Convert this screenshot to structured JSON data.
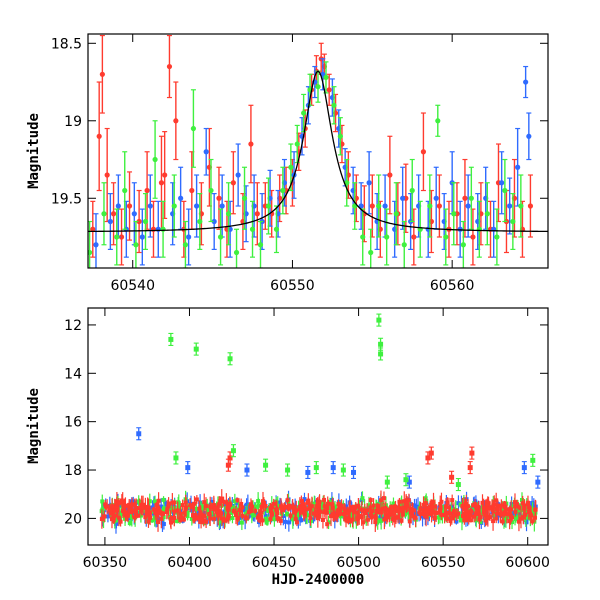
{
  "chart_data": [
    {
      "type": "scatter",
      "title": "",
      "xlabel": "",
      "ylabel": "Magnitude",
      "xlim": [
        60537.2,
        60566.0
      ],
      "ylim": [
        19.95,
        18.44
      ],
      "y_inverted": true,
      "x_ticks": [
        60540,
        60550,
        60560
      ],
      "y_ticks": [
        18.5,
        19,
        19.5
      ],
      "series": [
        {
          "color": "#ff3b2f",
          "points": [
            [
              60537.5,
              19.7,
              0.18
            ],
            [
              60537.9,
              19.1,
              0.35
            ],
            [
              60538.1,
              18.7,
              0.25
            ],
            [
              60538.4,
              19.35,
              0.3
            ],
            [
              60538.8,
              19.6,
              0.2
            ],
            [
              60539.3,
              19.75,
              0.18
            ],
            [
              60539.8,
              19.55,
              0.22
            ],
            [
              60540.4,
              19.65,
              0.2
            ],
            [
              60540.9,
              19.45,
              0.25
            ],
            [
              60541.3,
              19.7,
              0.18
            ],
            [
              60541.8,
              19.4,
              0.3
            ],
            [
              60542.0,
              19.35,
              0.28
            ],
            [
              60542.3,
              18.65,
              0.2
            ],
            [
              60542.7,
              19.0,
              0.25
            ],
            [
              60543.2,
              19.7,
              0.18
            ],
            [
              60543.7,
              19.45,
              0.25
            ],
            [
              60544.3,
              19.6,
              0.2
            ],
            [
              60544.8,
              19.3,
              0.25
            ],
            [
              60545.4,
              19.5,
              0.2
            ],
            [
              60545.9,
              19.7,
              0.18
            ],
            [
              60546.3,
              19.4,
              0.2
            ],
            [
              60546.9,
              19.65,
              0.18
            ],
            [
              60547.4,
              19.15,
              0.25
            ],
            [
              60547.8,
              19.6,
              0.2
            ],
            [
              60548.3,
              19.55,
              0.15
            ],
            [
              60548.7,
              19.6,
              0.15
            ],
            [
              60549.2,
              19.5,
              0.15
            ],
            [
              60549.6,
              19.45,
              0.15
            ],
            [
              60550.0,
              19.4,
              0.15
            ],
            [
              60550.4,
              19.2,
              0.12
            ],
            [
              60550.8,
              19.05,
              0.12
            ],
            [
              60551.2,
              18.8,
              0.1
            ],
            [
              60551.5,
              18.68,
              0.1
            ],
            [
              60551.8,
              18.6,
              0.1
            ],
            [
              60552.0,
              18.65,
              0.08
            ],
            [
              60552.3,
              18.8,
              0.1
            ],
            [
              60552.7,
              18.95,
              0.12
            ],
            [
              60553.1,
              19.15,
              0.12
            ],
            [
              60553.5,
              19.35,
              0.15
            ],
            [
              60554.0,
              19.5,
              0.15
            ],
            [
              60554.5,
              19.6,
              0.18
            ],
            [
              60555.0,
              19.55,
              0.2
            ],
            [
              60555.5,
              19.7,
              0.18
            ],
            [
              60556.1,
              19.35,
              0.25
            ],
            [
              60556.6,
              19.6,
              0.2
            ],
            [
              60557.1,
              19.5,
              0.22
            ],
            [
              60557.6,
              19.75,
              0.18
            ],
            [
              60558.2,
              19.2,
              0.25
            ],
            [
              60558.7,
              19.65,
              0.2
            ],
            [
              60559.2,
              19.55,
              0.2
            ],
            [
              60559.8,
              19.7,
              0.18
            ],
            [
              60560.3,
              19.6,
              0.2
            ],
            [
              60560.8,
              19.5,
              0.25
            ],
            [
              60561.3,
              19.75,
              0.18
            ],
            [
              60561.8,
              19.6,
              0.2
            ],
            [
              60562.4,
              19.7,
              0.18
            ],
            [
              60562.9,
              19.4,
              0.25
            ],
            [
              60563.4,
              19.65,
              0.2
            ],
            [
              60563.9,
              19.5,
              0.25
            ],
            [
              60564.4,
              19.7,
              0.18
            ],
            [
              60564.9,
              19.55,
              0.2
            ]
          ]
        },
        {
          "color": "#2f6bff",
          "points": [
            [
              60537.7,
              19.8,
              0.2
            ],
            [
              60538.6,
              19.65,
              0.18
            ],
            [
              60539.1,
              19.55,
              0.2
            ],
            [
              60539.6,
              19.7,
              0.18
            ],
            [
              60540.1,
              19.6,
              0.2
            ],
            [
              60540.6,
              19.75,
              0.18
            ],
            [
              60541.1,
              19.55,
              0.2
            ],
            [
              60541.6,
              19.7,
              0.18
            ],
            [
              60542.5,
              19.6,
              0.2
            ],
            [
              60543.0,
              19.5,
              0.2
            ],
            [
              60543.5,
              19.75,
              0.18
            ],
            [
              60544.0,
              19.55,
              0.2
            ],
            [
              60544.6,
              19.2,
              0.15
            ],
            [
              60545.1,
              19.65,
              0.18
            ],
            [
              60545.6,
              19.55,
              0.2
            ],
            [
              60546.1,
              19.7,
              0.18
            ],
            [
              60546.6,
              19.35,
              0.2
            ],
            [
              60547.1,
              19.6,
              0.18
            ],
            [
              60547.6,
              19.55,
              0.2
            ],
            [
              60548.1,
              19.65,
              0.18
            ],
            [
              60548.6,
              19.5,
              0.18
            ],
            [
              60549.1,
              19.6,
              0.15
            ],
            [
              60549.5,
              19.4,
              0.15
            ],
            [
              60550.1,
              19.35,
              0.15
            ],
            [
              60550.6,
              19.1,
              0.12
            ],
            [
              60551.0,
              18.9,
              0.12
            ],
            [
              60551.4,
              18.75,
              0.1
            ],
            [
              60551.9,
              18.7,
              0.1
            ],
            [
              60552.5,
              18.85,
              0.12
            ],
            [
              60552.9,
              19.05,
              0.12
            ],
            [
              60553.3,
              19.3,
              0.12
            ],
            [
              60553.8,
              19.45,
              0.15
            ],
            [
              60554.3,
              19.55,
              0.15
            ],
            [
              60554.8,
              19.4,
              0.2
            ],
            [
              60555.3,
              19.65,
              0.18
            ],
            [
              60555.8,
              19.55,
              0.2
            ],
            [
              60556.4,
              19.7,
              0.18
            ],
            [
              60556.9,
              19.5,
              0.2
            ],
            [
              60557.4,
              19.65,
              0.18
            ],
            [
              60557.9,
              19.55,
              0.2
            ],
            [
              60558.5,
              19.7,
              0.18
            ],
            [
              60559.0,
              19.5,
              0.2
            ],
            [
              60559.5,
              19.65,
              0.18
            ],
            [
              60560.0,
              19.4,
              0.2
            ],
            [
              60560.5,
              19.7,
              0.18
            ],
            [
              60561.0,
              19.55,
              0.2
            ],
            [
              60561.6,
              19.65,
              0.18
            ],
            [
              60562.1,
              19.5,
              0.2
            ],
            [
              60562.6,
              19.7,
              0.18
            ],
            [
              60563.1,
              19.4,
              0.2
            ],
            [
              60563.6,
              19.55,
              0.18
            ],
            [
              60564.1,
              19.3,
              0.25
            ],
            [
              60564.6,
              18.75,
              0.1
            ],
            [
              60564.8,
              19.1,
              0.15
            ]
          ]
        },
        {
          "color": "#3ff03f",
          "points": [
            [
              60537.3,
              19.85,
              0.2
            ],
            [
              60538.2,
              19.6,
              0.2
            ],
            [
              60539.0,
              19.75,
              0.18
            ],
            [
              60539.5,
              19.45,
              0.25
            ],
            [
              60540.2,
              19.8,
              0.15
            ],
            [
              60540.8,
              19.65,
              0.18
            ],
            [
              60541.4,
              19.25,
              0.25
            ],
            [
              60541.9,
              19.7,
              0.18
            ],
            [
              60542.6,
              19.55,
              0.2
            ],
            [
              60543.3,
              19.8,
              0.15
            ],
            [
              60543.8,
              19.05,
              0.25
            ],
            [
              60544.2,
              19.65,
              0.18
            ],
            [
              60544.9,
              19.45,
              0.2
            ],
            [
              60545.5,
              19.75,
              0.18
            ],
            [
              60546.0,
              19.6,
              0.2
            ],
            [
              60546.5,
              19.85,
              0.15
            ],
            [
              60547.0,
              19.5,
              0.2
            ],
            [
              60547.5,
              19.7,
              0.18
            ],
            [
              60548.0,
              19.8,
              0.15
            ],
            [
              60548.5,
              19.55,
              0.18
            ],
            [
              60549.0,
              19.7,
              0.15
            ],
            [
              60549.4,
              19.45,
              0.15
            ],
            [
              60549.9,
              19.3,
              0.15
            ],
            [
              60550.3,
              19.15,
              0.12
            ],
            [
              60550.7,
              18.95,
              0.12
            ],
            [
              60551.1,
              18.8,
              0.1
            ],
            [
              60551.6,
              18.78,
              0.1
            ],
            [
              60552.1,
              18.72,
              0.1
            ],
            [
              60552.6,
              18.9,
              0.12
            ],
            [
              60553.0,
              19.1,
              0.12
            ],
            [
              60553.4,
              19.4,
              0.15
            ],
            [
              60553.9,
              19.55,
              0.15
            ],
            [
              60554.4,
              19.75,
              0.18
            ],
            [
              60554.9,
              19.85,
              0.15
            ],
            [
              60555.4,
              19.55,
              0.2
            ],
            [
              60555.9,
              19.75,
              0.18
            ],
            [
              60556.5,
              19.6,
              0.2
            ],
            [
              60557.0,
              19.8,
              0.15
            ],
            [
              60557.5,
              19.45,
              0.2
            ],
            [
              60558.0,
              19.7,
              0.18
            ],
            [
              60558.6,
              19.55,
              0.2
            ],
            [
              60559.1,
              19.0,
              0.1
            ],
            [
              60559.6,
              19.75,
              0.18
            ],
            [
              60560.1,
              19.6,
              0.2
            ],
            [
              60560.7,
              19.8,
              0.15
            ],
            [
              60561.2,
              19.5,
              0.2
            ],
            [
              60561.7,
              19.7,
              0.18
            ],
            [
              60562.2,
              19.6,
              0.2
            ],
            [
              60562.8,
              19.75,
              0.18
            ],
            [
              60563.3,
              19.45,
              0.2
            ],
            [
              60563.8,
              19.65,
              0.18
            ],
            [
              60564.3,
              19.55,
              0.2
            ]
          ]
        }
      ],
      "model_curve": {
        "color": "#000000",
        "peak_x": 60551.6,
        "peak_mag": 18.68,
        "baseline_mag": 19.72,
        "width": 1.1
      }
    },
    {
      "type": "scatter",
      "title": "",
      "xlabel": "HJD-2400000",
      "ylabel": "Magnitude",
      "xlim": [
        60340,
        60612
      ],
      "ylim": [
        21.1,
        11.3
      ],
      "y_inverted": true,
      "x_ticks": [
        60350,
        60400,
        60450,
        60500,
        60550,
        60600
      ],
      "y_ticks": [
        12,
        14,
        16,
        18,
        20
      ],
      "baseline_mag": 19.7,
      "baseline_range": [
        60348,
        60605
      ],
      "series": [
        {
          "color": "#ff3b2f",
          "outliers": [
            [
              60423,
              17.8
            ],
            [
              60424,
              17.5
            ],
            [
              60541,
              17.5
            ],
            [
              60543,
              17.3
            ],
            [
              60555,
              18.3
            ],
            [
              60566,
              17.9
            ],
            [
              60567,
              17.3
            ]
          ]
        },
        {
          "color": "#2f6bff",
          "outliers": [
            [
              60370,
              16.5
            ],
            [
              60399,
              17.9
            ],
            [
              60434,
              18.0
            ],
            [
              60470,
              18.1
            ],
            [
              60485,
              17.9
            ],
            [
              60497,
              18.1
            ],
            [
              60530,
              18.5
            ],
            [
              60598,
              17.9
            ],
            [
              60606,
              18.5
            ]
          ]
        },
        {
          "color": "#3ff03f",
          "outliers": [
            [
              60389,
              12.6
            ],
            [
              60404,
              13.0
            ],
            [
              60424,
              13.4
            ],
            [
              60392,
              17.5
            ],
            [
              60426,
              17.2
            ],
            [
              60445,
              17.8
            ],
            [
              60458,
              18.0
            ],
            [
              60475,
              17.9
            ],
            [
              60491,
              18.0
            ],
            [
              60512,
              11.8
            ],
            [
              60513,
              12.8
            ],
            [
              60513,
              13.2
            ],
            [
              60517,
              18.5
            ],
            [
              60528,
              18.4
            ],
            [
              60559,
              18.6
            ],
            [
              60603,
              17.6
            ]
          ]
        }
      ]
    }
  ]
}
